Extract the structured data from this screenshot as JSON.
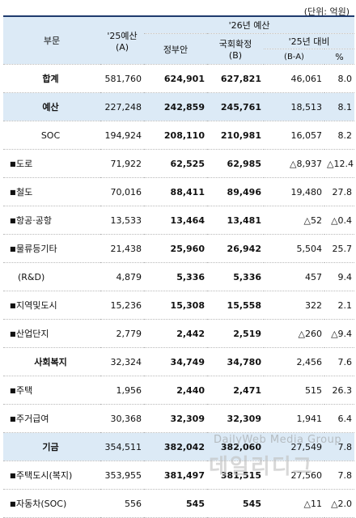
{
  "unit_note": "(단위: 억원)",
  "headers": {
    "category": "부문",
    "budget25": "'25예산",
    "budget25_sub": "(A)",
    "budget26": "'26년 예산",
    "gov": "정부안",
    "final": "국회확정",
    "final_sub": "(B)",
    "vs25": "'25년 대비",
    "diff": "(B-A)",
    "pct": "%"
  },
  "rows": [
    {
      "name": "합계",
      "a": "581,760",
      "gov": "624,901",
      "b": "627,821",
      "diff": "46,061",
      "pct": "8.0"
    },
    {
      "name": "예산",
      "a": "227,248",
      "gov": "242,859",
      "b": "245,761",
      "diff": "18,513",
      "pct": "8.1"
    },
    {
      "name": "SOC",
      "a": "194,924",
      "gov": "208,110",
      "b": "210,981",
      "diff": "16,057",
      "pct": "8.2"
    },
    {
      "name": "도로",
      "a": "71,922",
      "gov": "62,525",
      "b": "62,985",
      "diff": "△8,937",
      "pct": "△12.4"
    },
    {
      "name": "철도",
      "a": "70,016",
      "gov": "88,411",
      "b": "89,496",
      "diff": "19,480",
      "pct": "27.8"
    },
    {
      "name": "항공·공항",
      "a": "13,533",
      "gov": "13,464",
      "b": "13,481",
      "diff": "△52",
      "pct": "△0.4"
    },
    {
      "name": "물류등기타",
      "a": "21,438",
      "gov": "25,960",
      "b": "26,942",
      "diff": "5,504",
      "pct": "25.7"
    },
    {
      "name": "(R&D)",
      "a": "4,879",
      "gov": "5,336",
      "b": "5,336",
      "diff": "457",
      "pct": "9.4"
    },
    {
      "name": "지역및도시",
      "a": "15,236",
      "gov": "15,308",
      "b": "15,558",
      "diff": "322",
      "pct": "2.1"
    },
    {
      "name": "산업단지",
      "a": "2,779",
      "gov": "2,442",
      "b": "2,519",
      "diff": "△260",
      "pct": "△9.4"
    },
    {
      "name": "사회복지",
      "a": "32,324",
      "gov": "34,749",
      "b": "34,780",
      "diff": "2,456",
      "pct": "7.6"
    },
    {
      "name": "주택",
      "a": "1,956",
      "gov": "2,440",
      "b": "2,471",
      "diff": "515",
      "pct": "26.3"
    },
    {
      "name": "주거급여",
      "a": "30,368",
      "gov": "32,309",
      "b": "32,309",
      "diff": "1,941",
      "pct": "6.4"
    },
    {
      "name": "기금",
      "a": "354,511",
      "gov": "382,042",
      "b": "382,060",
      "diff": "27,549",
      "pct": "7.8"
    },
    {
      "name": "주택도시(복지)",
      "a": "353,955",
      "gov": "381,497",
      "b": "381,515",
      "diff": "27,560",
      "pct": "7.8"
    },
    {
      "name": "자동차(SOC)",
      "a": "556",
      "gov": "545",
      "b": "545",
      "diff": "△11",
      "pct": "△2.0"
    }
  ],
  "watermark": {
    "line1": "DailyWeb Media Group",
    "line2": "데일리디그"
  }
}
